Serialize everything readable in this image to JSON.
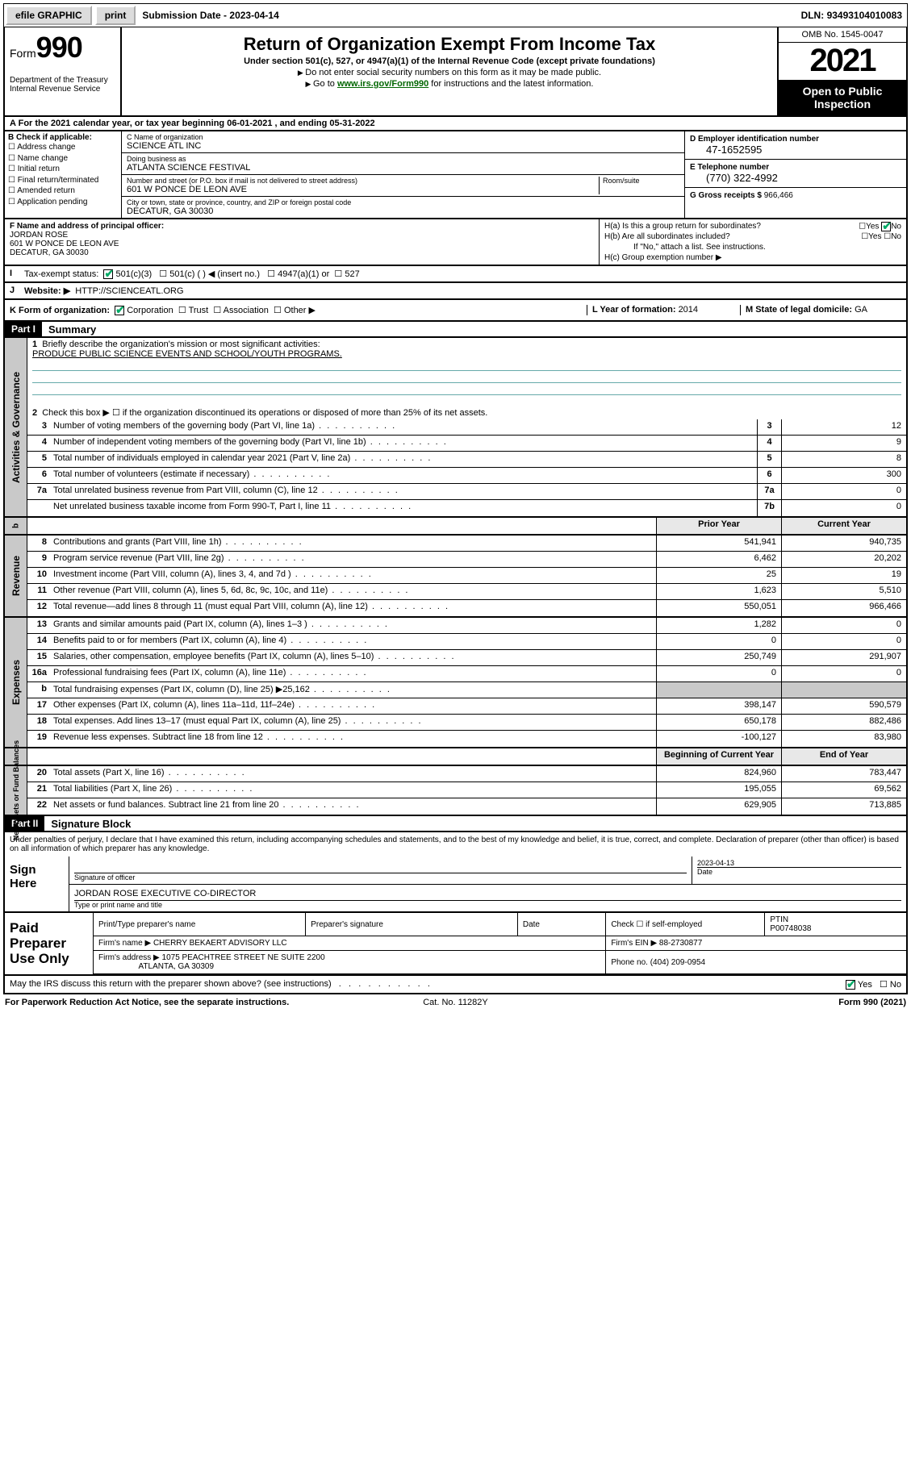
{
  "topbar": {
    "efile": "efile GRAPHIC",
    "print": "print",
    "submission_label": "Submission Date - ",
    "submission_date": "2023-04-14",
    "dln_label": "DLN: ",
    "dln": "93493104010083"
  },
  "header": {
    "form_label": "Form",
    "form_no": "990",
    "dept": "Department of the Treasury\nInternal Revenue Service",
    "title": "Return of Organization Exempt From Income Tax",
    "subtitle": "Under section 501(c), 527, or 4947(a)(1) of the Internal Revenue Code (except private foundations)",
    "note1": "Do not enter social security numbers on this form as it may be made public.",
    "note2_pre": "Go to ",
    "note2_link": "www.irs.gov/Form990",
    "note2_post": " for instructions and the latest information.",
    "omb": "OMB No. 1545-0047",
    "year": "2021",
    "open": "Open to Public Inspection"
  },
  "period": {
    "text_pre": "For the 2021 calendar year, or tax year beginning ",
    "begin": "06-01-2021",
    "mid": " , and ending ",
    "end": "05-31-2022"
  },
  "B": {
    "label": "B Check if applicable:",
    "opts": [
      "Address change",
      "Name change",
      "Initial return",
      "Final return/terminated",
      "Amended return",
      "Application pending"
    ]
  },
  "C": {
    "name_cap": "C Name of organization",
    "name": "SCIENCE ATL INC",
    "dba_cap": "Doing business as",
    "dba": "ATLANTA SCIENCE FESTIVAL",
    "street_cap": "Number and street (or P.O. box if mail is not delivered to street address)",
    "room_cap": "Room/suite",
    "street": "601 W PONCE DE LEON AVE",
    "city_cap": "City or town, state or province, country, and ZIP or foreign postal code",
    "city": "DECATUR, GA  30030"
  },
  "D": {
    "ein_cap": "D Employer identification number",
    "ein": "47-1652595",
    "tel_cap": "E Telephone number",
    "tel": "(770) 322-4992",
    "gross_cap": "G Gross receipts $ ",
    "gross": "966,466"
  },
  "F": {
    "cap": "F Name and address of principal officer:",
    "name": "JORDAN ROSE",
    "addr1": "601 W PONCE DE LEON AVE",
    "addr2": "DECATUR, GA  30030"
  },
  "H": {
    "a": "H(a)  Is this a group return for subordinates?",
    "b": "H(b)  Are all subordinates included?",
    "b_note": "If \"No,\" attach a list. See instructions.",
    "c": "H(c)  Group exemption number ▶"
  },
  "I": {
    "label": "Tax-exempt status:",
    "opts": [
      "501(c)(3)",
      "501(c) (   ) ◀ (insert no.)",
      "4947(a)(1) or",
      "527"
    ]
  },
  "J": {
    "label": "Website: ▶",
    "val": "HTTP://SCIENCEATL.ORG"
  },
  "K": {
    "label": "K Form of organization:",
    "opts": [
      "Corporation",
      "Trust",
      "Association",
      "Other ▶"
    ]
  },
  "L": {
    "label": "L Year of formation: ",
    "val": "2014"
  },
  "M": {
    "label": "M State of legal domicile: ",
    "val": "GA"
  },
  "part1": {
    "tag": "Part I",
    "title": "Summary"
  },
  "gov": {
    "side": "Activities & Governance",
    "l1": "Briefly describe the organization's mission or most significant activities:",
    "mission": "PRODUCE PUBLIC SCIENCE EVENTS AND SCHOOL/YOUTH PROGRAMS.",
    "l2": "Check this box ▶ ☐  if the organization discontinued its operations or disposed of more than 25% of its net assets.",
    "rows": [
      {
        "n": "3",
        "t": "Number of voting members of the governing body (Part VI, line 1a)",
        "b": "3",
        "v": "12"
      },
      {
        "n": "4",
        "t": "Number of independent voting members of the governing body (Part VI, line 1b)",
        "b": "4",
        "v": "9"
      },
      {
        "n": "5",
        "t": "Total number of individuals employed in calendar year 2021 (Part V, line 2a)",
        "b": "5",
        "v": "8"
      },
      {
        "n": "6",
        "t": "Total number of volunteers (estimate if necessary)",
        "b": "6",
        "v": "300"
      },
      {
        "n": "7a",
        "t": "Total unrelated business revenue from Part VIII, column (C), line 12",
        "b": "7a",
        "v": "0"
      },
      {
        "n": "",
        "t": "Net unrelated business taxable income from Form 990-T, Part I, line 11",
        "b": "7b",
        "v": "0"
      }
    ]
  },
  "revexp": {
    "hdr_prior": "Prior Year",
    "hdr_curr": "Current Year",
    "rev_side": "Revenue",
    "rev": [
      {
        "n": "8",
        "t": "Contributions and grants (Part VIII, line 1h)",
        "p": "541,941",
        "c": "940,735"
      },
      {
        "n": "9",
        "t": "Program service revenue (Part VIII, line 2g)",
        "p": "6,462",
        "c": "20,202"
      },
      {
        "n": "10",
        "t": "Investment income (Part VIII, column (A), lines 3, 4, and 7d )",
        "p": "25",
        "c": "19"
      },
      {
        "n": "11",
        "t": "Other revenue (Part VIII, column (A), lines 5, 6d, 8c, 9c, 10c, and 11e)",
        "p": "1,623",
        "c": "5,510"
      },
      {
        "n": "12",
        "t": "Total revenue—add lines 8 through 11 (must equal Part VIII, column (A), line 12)",
        "p": "550,051",
        "c": "966,466"
      }
    ],
    "exp_side": "Expenses",
    "exp": [
      {
        "n": "13",
        "t": "Grants and similar amounts paid (Part IX, column (A), lines 1–3 )",
        "p": "1,282",
        "c": "0"
      },
      {
        "n": "14",
        "t": "Benefits paid to or for members (Part IX, column (A), line 4)",
        "p": "0",
        "c": "0"
      },
      {
        "n": "15",
        "t": "Salaries, other compensation, employee benefits (Part IX, column (A), lines 5–10)",
        "p": "250,749",
        "c": "291,907"
      },
      {
        "n": "16a",
        "t": "Professional fundraising fees (Part IX, column (A), line 11e)",
        "p": "0",
        "c": "0"
      },
      {
        "n": "b",
        "t": "Total fundraising expenses (Part IX, column (D), line 25) ▶25,162",
        "p": "",
        "c": "",
        "grey": true
      },
      {
        "n": "17",
        "t": "Other expenses (Part IX, column (A), lines 11a–11d, 11f–24e)",
        "p": "398,147",
        "c": "590,579"
      },
      {
        "n": "18",
        "t": "Total expenses. Add lines 13–17 (must equal Part IX, column (A), line 25)",
        "p": "650,178",
        "c": "882,486"
      },
      {
        "n": "19",
        "t": "Revenue less expenses. Subtract line 18 from line 12",
        "p": "-100,127",
        "c": "83,980"
      }
    ],
    "na_side": "Net Assets or Fund Balances",
    "na_hdr_b": "Beginning of Current Year",
    "na_hdr_e": "End of Year",
    "na": [
      {
        "n": "20",
        "t": "Total assets (Part X, line 16)",
        "p": "824,960",
        "c": "783,447"
      },
      {
        "n": "21",
        "t": "Total liabilities (Part X, line 26)",
        "p": "195,055",
        "c": "69,562"
      },
      {
        "n": "22",
        "t": "Net assets or fund balances. Subtract line 21 from line 20",
        "p": "629,905",
        "c": "713,885"
      }
    ]
  },
  "part2": {
    "tag": "Part II",
    "title": "Signature Block"
  },
  "sig": {
    "decl": "Under penalties of perjury, I declare that I have examined this return, including accompanying schedules and statements, and to the best of my knowledge and belief, it is true, correct, and complete. Declaration of preparer (other than officer) is based on all information of which preparer has any knowledge.",
    "sign_here": "Sign Here",
    "sig_officer": "Signature of officer",
    "date_lbl": "Date",
    "date": "2023-04-13",
    "name": "JORDAN ROSE  EXECUTIVE CO-DIRECTOR",
    "name_cap": "Type or print name and title"
  },
  "paid": {
    "label": "Paid Preparer Use Only",
    "h1": "Print/Type preparer's name",
    "h2": "Preparer's signature",
    "h3": "Date",
    "h4_pre": "Check ☐ if self-employed",
    "h5_pre": "PTIN",
    "ptin": "P00748038",
    "firm_name_lbl": "Firm's name    ▶ ",
    "firm_name": "CHERRY BEKAERT ADVISORY LLC",
    "firm_ein_lbl": "Firm's EIN ▶ ",
    "firm_ein": "88-2730877",
    "firm_addr_lbl": "Firm's address ▶ ",
    "firm_addr": "1075 PEACHTREE STREET NE SUITE 2200",
    "firm_city": "ATLANTA, GA  30309",
    "phone_lbl": "Phone no. ",
    "phone": "(404) 209-0954"
  },
  "irs_q": "May the IRS discuss this return with the preparer shown above? (see instructions)",
  "footer": {
    "left": "For Paperwork Reduction Act Notice, see the separate instructions.",
    "mid": "Cat. No. 11282Y",
    "right": "Form 990 (2021)"
  },
  "colors": {
    "green_link": "#006600",
    "grey_bg": "#c9c9c9",
    "lightgrey": "#e8e8e8",
    "check": "#00aa55"
  }
}
